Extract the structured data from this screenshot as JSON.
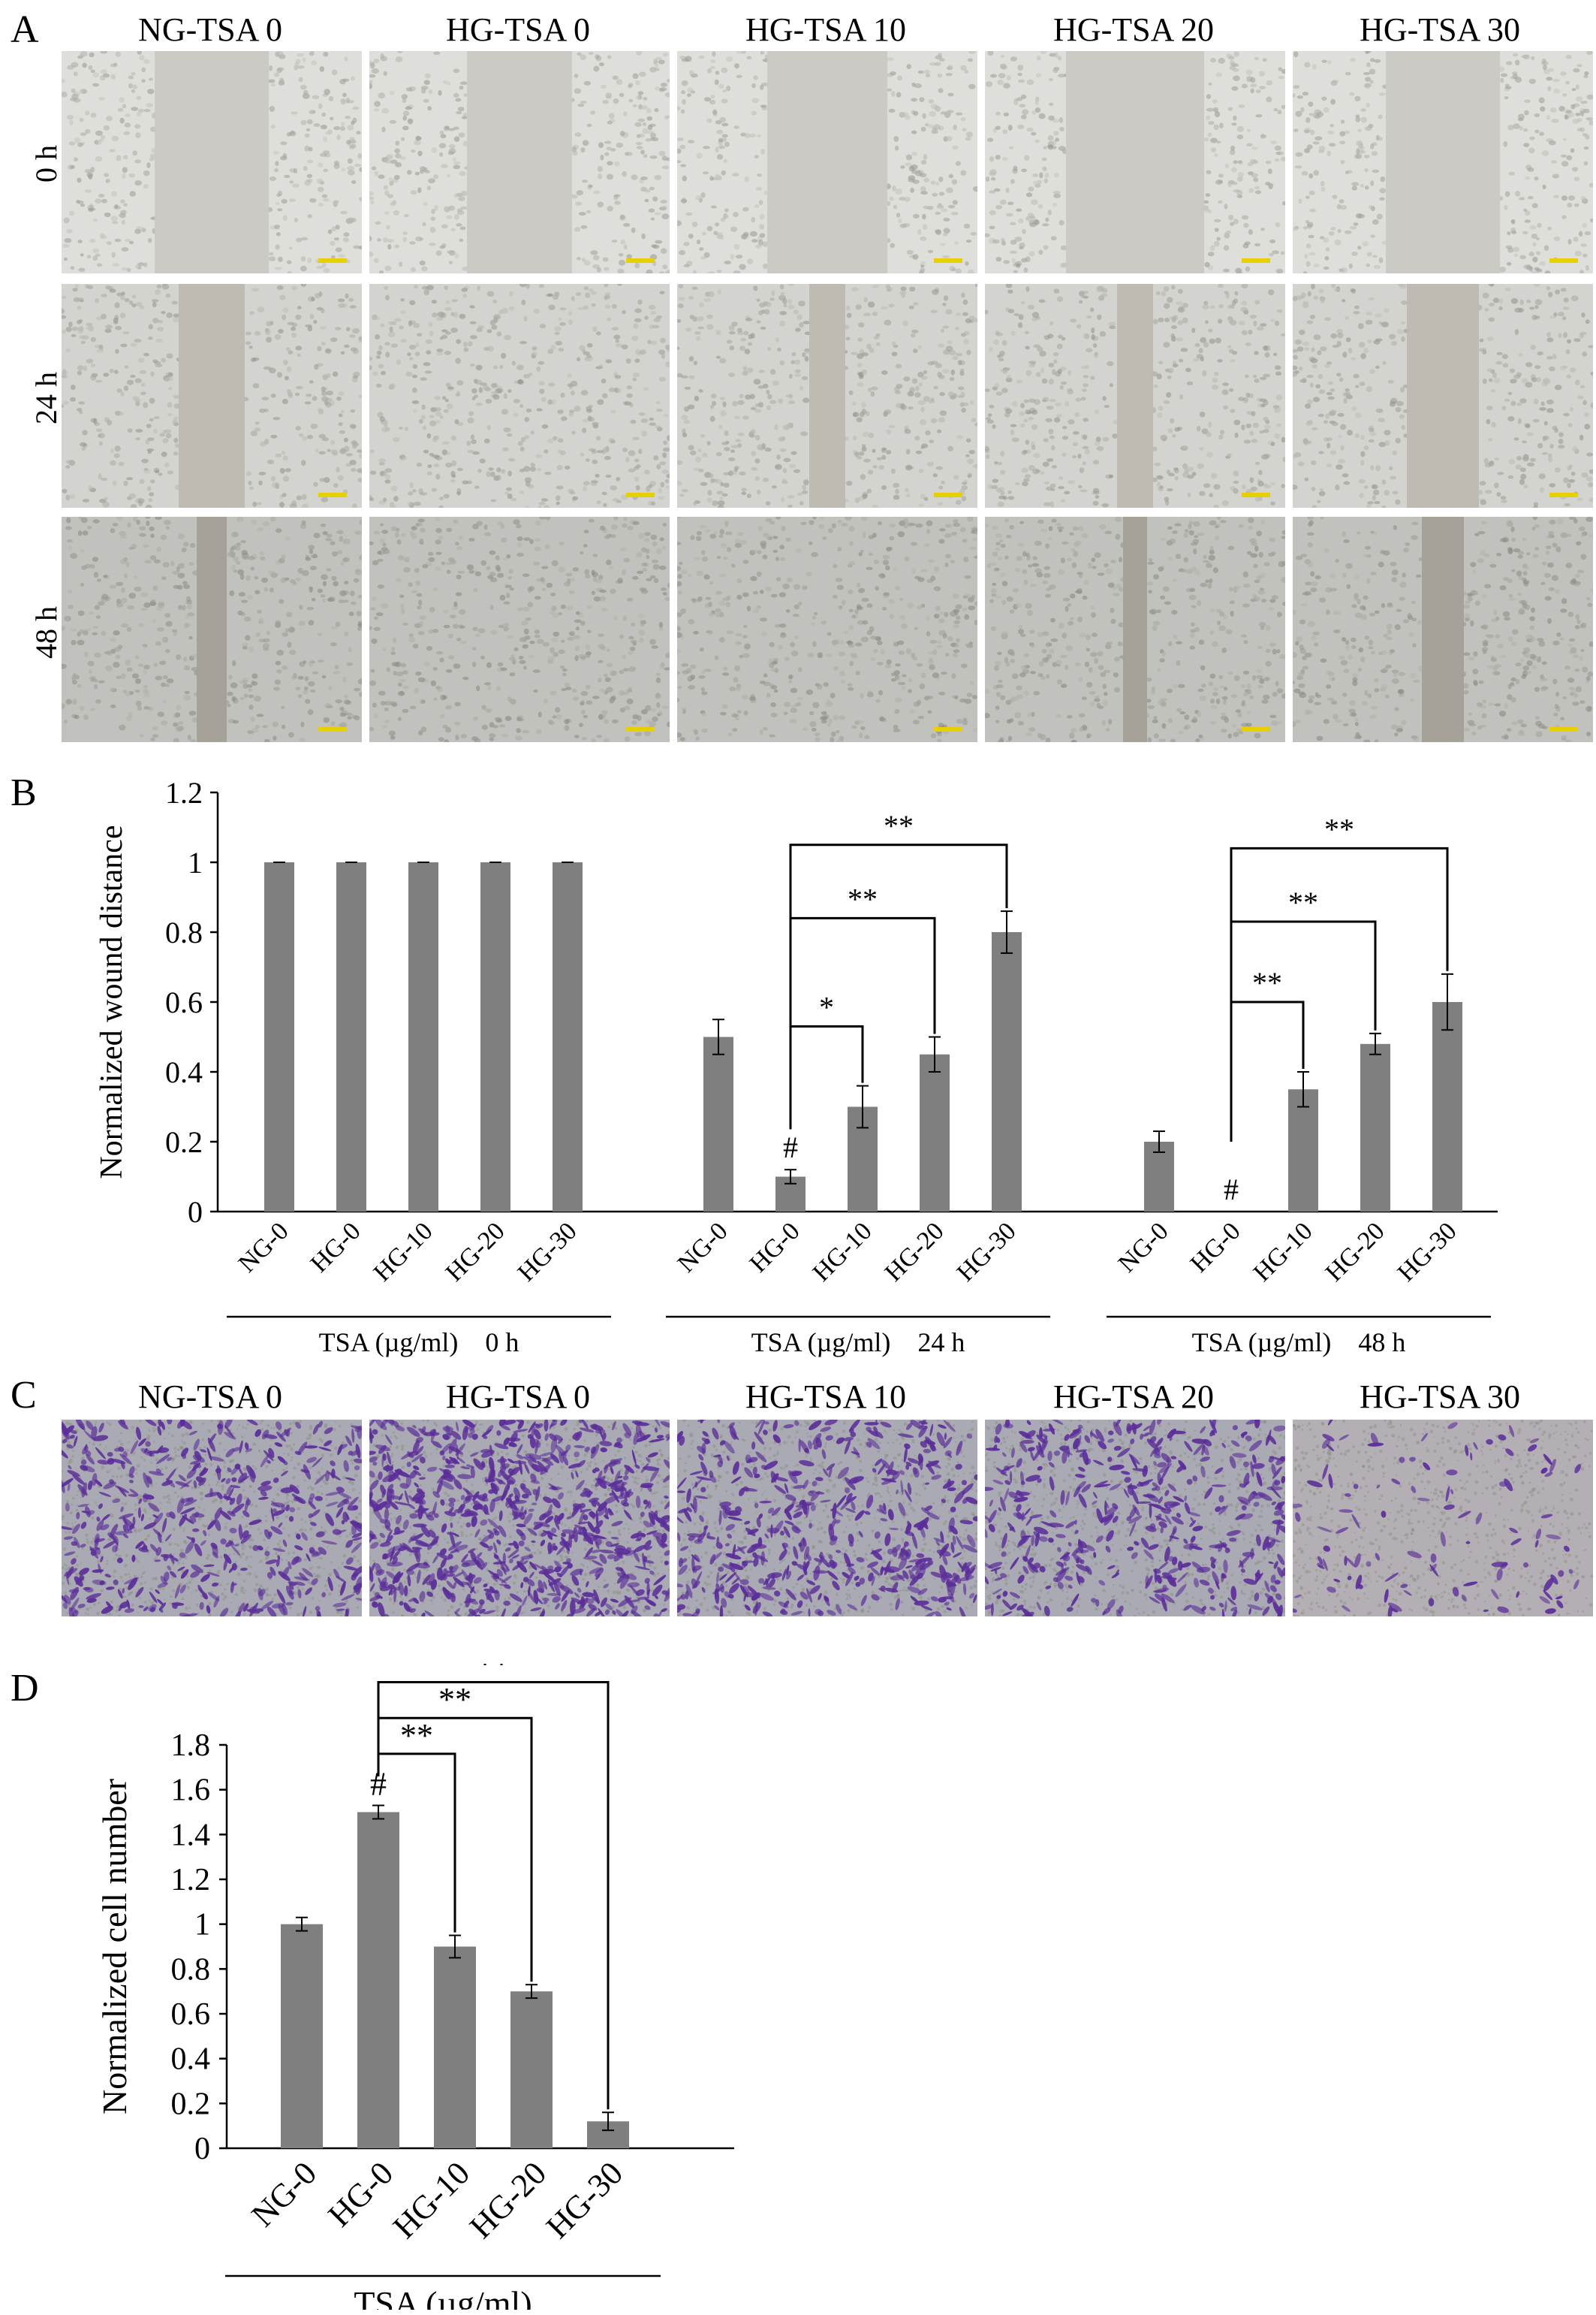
{
  "panels": {
    "a_label": "A",
    "b_label": "B",
    "c_label": "C",
    "d_label": "D"
  },
  "micrographs": {
    "columns": [
      "NG-TSA 0",
      "HG-TSA 0",
      "HG-TSA 10",
      "HG-TSA 20",
      "HG-TSA 30"
    ],
    "rows": [
      "0 h",
      "24 h",
      "48 h"
    ],
    "wound_colors": [
      "#c9c8c3",
      "#bdb9b0",
      "#a49f96"
    ],
    "stain_color": "#5b2d9a"
  },
  "chart_data": [
    {
      "type": "bar",
      "panel": "B",
      "ylabel": "Normalized wound distance",
      "ylim": [
        0,
        1.2
      ],
      "yticks": [
        "0",
        "0.2",
        "0.4",
        "0.6",
        "0.8",
        "1",
        "1.2"
      ],
      "bar_color": "#7f7f7f",
      "groups": [
        {
          "categories": [
            "NG-0",
            "HG-0",
            "HG-10",
            "HG-20",
            "HG-30"
          ],
          "values": [
            1,
            1,
            1,
            1,
            1
          ],
          "errors": [
            0,
            0,
            0,
            0,
            0
          ],
          "group_label": "TSA (µg/ml)    0 h",
          "hash_index": null
        },
        {
          "categories": [
            "NG-0",
            "HG-0",
            "HG-10",
            "HG-20",
            "HG-30"
          ],
          "values": [
            0.5,
            0.1,
            0.3,
            0.45,
            0.8
          ],
          "errors": [
            0.05,
            0.02,
            0.06,
            0.05,
            0.06
          ],
          "group_label": "TSA (µg/ml)    24 h",
          "hash_index": 1
        },
        {
          "categories": [
            "NG-0",
            "HG-0",
            "HG-10",
            "HG-20",
            "HG-30"
          ],
          "values": [
            0.2,
            0,
            0.35,
            0.48,
            0.6
          ],
          "errors": [
            0.03,
            0,
            0.05,
            0.03,
            0.08
          ],
          "group_label": "TSA (µg/ml)    48 h",
          "hash_index": 1
        }
      ],
      "significance": [
        {
          "group": 1,
          "from": 1,
          "to": 2,
          "label": "*"
        },
        {
          "group": 1,
          "from": 1,
          "to": 3,
          "label": "**"
        },
        {
          "group": 1,
          "from": 1,
          "to": 4,
          "label": "**"
        },
        {
          "group": 2,
          "from": 1,
          "to": 2,
          "label": "**"
        },
        {
          "group": 2,
          "from": 1,
          "to": 3,
          "label": "**"
        },
        {
          "group": 2,
          "from": 1,
          "to": 4,
          "label": "**"
        }
      ],
      "annotation": "#"
    },
    {
      "type": "bar",
      "panel": "D",
      "ylabel": "Normalized cell number",
      "xlabel": "TSA (µg/ml)",
      "ylim": [
        0,
        1.8
      ],
      "yticks": [
        "0",
        "0.2",
        "0.4",
        "0.6",
        "0.8",
        "1",
        "1.2",
        "1.4",
        "1.6",
        "1.8"
      ],
      "bar_color": "#7f7f7f",
      "categories": [
        "NG-0",
        "HG-0",
        "HG-10",
        "HG-20",
        "HG-30"
      ],
      "values": [
        1,
        1.5,
        0.9,
        0.7,
        0.12
      ],
      "errors": [
        0.03,
        0.03,
        0.05,
        0.03,
        0.04
      ],
      "hash_index": 1,
      "annotation": "#",
      "significance": [
        {
          "from": 1,
          "to": 2,
          "label": "**"
        },
        {
          "from": 1,
          "to": 3,
          "label": "**"
        },
        {
          "from": 1,
          "to": 4,
          "label": "**"
        }
      ]
    }
  ]
}
